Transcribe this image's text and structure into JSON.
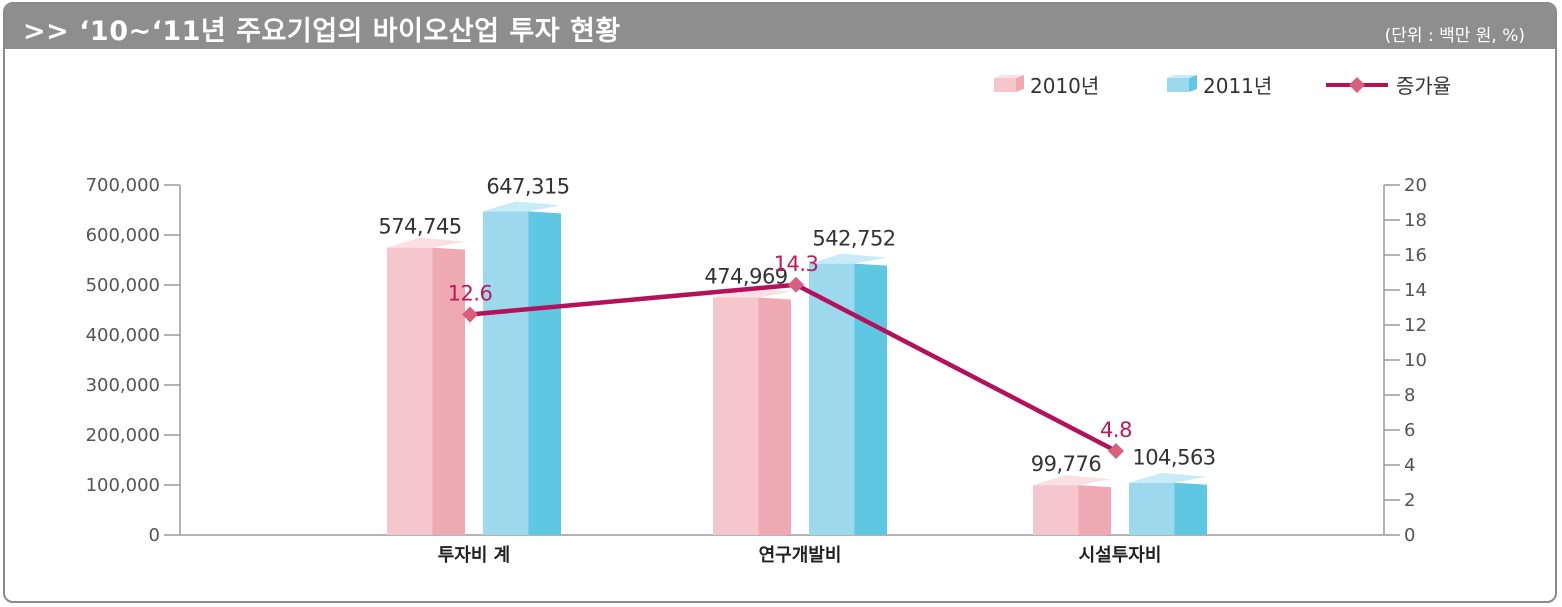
{
  "header": {
    "title": ">> ‘10~‘11년 주요기업의 바이오산업 투자 현황",
    "unit": "(단위 : 백만 원, %)"
  },
  "colors": {
    "header_bg": "#8e8e8e",
    "bar2010_front": "#f5c6cc",
    "bar2010_side": "#efa9b2",
    "bar2010_top": "#fbe0e3",
    "bar2011_front": "#9dd9ec",
    "bar2011_side": "#5ec8e2",
    "bar2011_top": "#c8ecf7",
    "line": "#b5115a",
    "marker": "#d9607a",
    "rate_label": "#c2185b"
  },
  "chart_data": {
    "type": "bar",
    "categories": [
      "투자비 계",
      "연구개발비",
      "시설투자비"
    ],
    "series": [
      {
        "name": "2010년",
        "type": "bar",
        "axis": "left",
        "values": [
          574745,
          474969,
          99776
        ],
        "labels": [
          "574,745",
          "474,969",
          "99,776"
        ]
      },
      {
        "name": "2011년",
        "type": "bar",
        "axis": "left",
        "values": [
          647315,
          542752,
          104563
        ],
        "labels": [
          "647,315",
          "542,752",
          "104,563"
        ]
      },
      {
        "name": "증가율",
        "type": "line",
        "axis": "right",
        "values": [
          12.6,
          14.3,
          4.8
        ],
        "labels": [
          "12.6",
          "14.3",
          "4.8"
        ]
      }
    ],
    "y_left": {
      "min": 0,
      "max": 700000,
      "ticks": [
        0,
        100000,
        200000,
        300000,
        400000,
        500000,
        600000,
        700000
      ],
      "tick_labels": [
        "0",
        "100,000",
        "200,000",
        "300,000",
        "400,000",
        "500,000",
        "600,000",
        "700,000"
      ]
    },
    "y_right": {
      "min": 0,
      "max": 20,
      "ticks": [
        0,
        2,
        4,
        6,
        8,
        10,
        12,
        14,
        16,
        18,
        20
      ],
      "tick_labels": [
        "0",
        "2",
        "4",
        "6",
        "8",
        "10",
        "12",
        "14",
        "16",
        "18",
        "20"
      ]
    },
    "legend_position": "top-right",
    "grid": false
  }
}
